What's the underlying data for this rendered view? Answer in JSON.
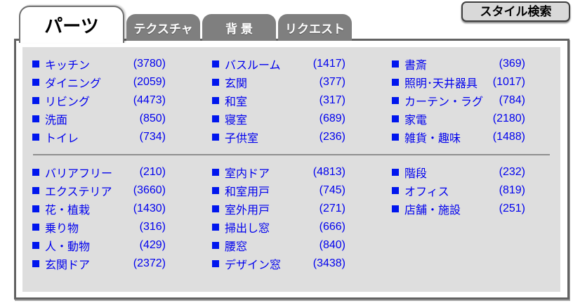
{
  "header": {
    "search_button_label": "スタイル検索"
  },
  "tabs": [
    {
      "label": "パーツ",
      "active": true
    },
    {
      "label": "テクスチャ",
      "active": false
    },
    {
      "label": "背 景",
      "active": false
    },
    {
      "label": "リクエスト",
      "active": false
    }
  ],
  "groups": [
    {
      "columns": [
        [
          {
            "label": "キッチン",
            "count": "(3780)"
          },
          {
            "label": "ダイニング",
            "count": "(2059)"
          },
          {
            "label": "リビング",
            "count": "(4473)"
          },
          {
            "label": "洗面",
            "count": "(850)"
          },
          {
            "label": "トイレ",
            "count": "(734)"
          }
        ],
        [
          {
            "label": "バスルーム",
            "count": "(1417)"
          },
          {
            "label": "玄関",
            "count": "(377)"
          },
          {
            "label": "和室",
            "count": "(317)"
          },
          {
            "label": "寝室",
            "count": "(689)"
          },
          {
            "label": "子供室",
            "count": "(236)"
          }
        ],
        [
          {
            "label": "書斎",
            "count": "(369)"
          },
          {
            "label": "照明･天井器具",
            "count": "(1017)"
          },
          {
            "label": "カーテン・ラグ",
            "count": "(784)"
          },
          {
            "label": "家電",
            "count": "(2180)"
          },
          {
            "label": "雑貨・趣味",
            "count": "(1488)"
          }
        ]
      ]
    },
    {
      "columns": [
        [
          {
            "label": "バリアフリー",
            "count": "(210)"
          },
          {
            "label": "エクステリア",
            "count": "(3660)"
          },
          {
            "label": "花・植栽",
            "count": "(1430)"
          },
          {
            "label": "乗り物",
            "count": "(316)"
          },
          {
            "label": "人・動物",
            "count": "(429)"
          },
          {
            "label": "玄関ドア",
            "count": "(2372)"
          }
        ],
        [
          {
            "label": "室内ドア",
            "count": "(4813)"
          },
          {
            "label": "和室用戸",
            "count": "(745)"
          },
          {
            "label": "室外用戸",
            "count": "(271)"
          },
          {
            "label": "掃出し窓",
            "count": "(666)"
          },
          {
            "label": "腰窓",
            "count": "(840)"
          },
          {
            "label": "デザイン窓",
            "count": "(3438)"
          }
        ],
        [
          {
            "label": "階段",
            "count": "(232)"
          },
          {
            "label": "オフィス",
            "count": "(819)"
          },
          {
            "label": "店舗・施設",
            "count": "(251)"
          }
        ]
      ]
    }
  ],
  "colors": {
    "link_blue": "#0000ee",
    "bullet_blue": "#0016ee",
    "panel_gray": "#dedede",
    "inactive_tab_gray": "#7f7f7f",
    "border_gray": "#636363"
  }
}
